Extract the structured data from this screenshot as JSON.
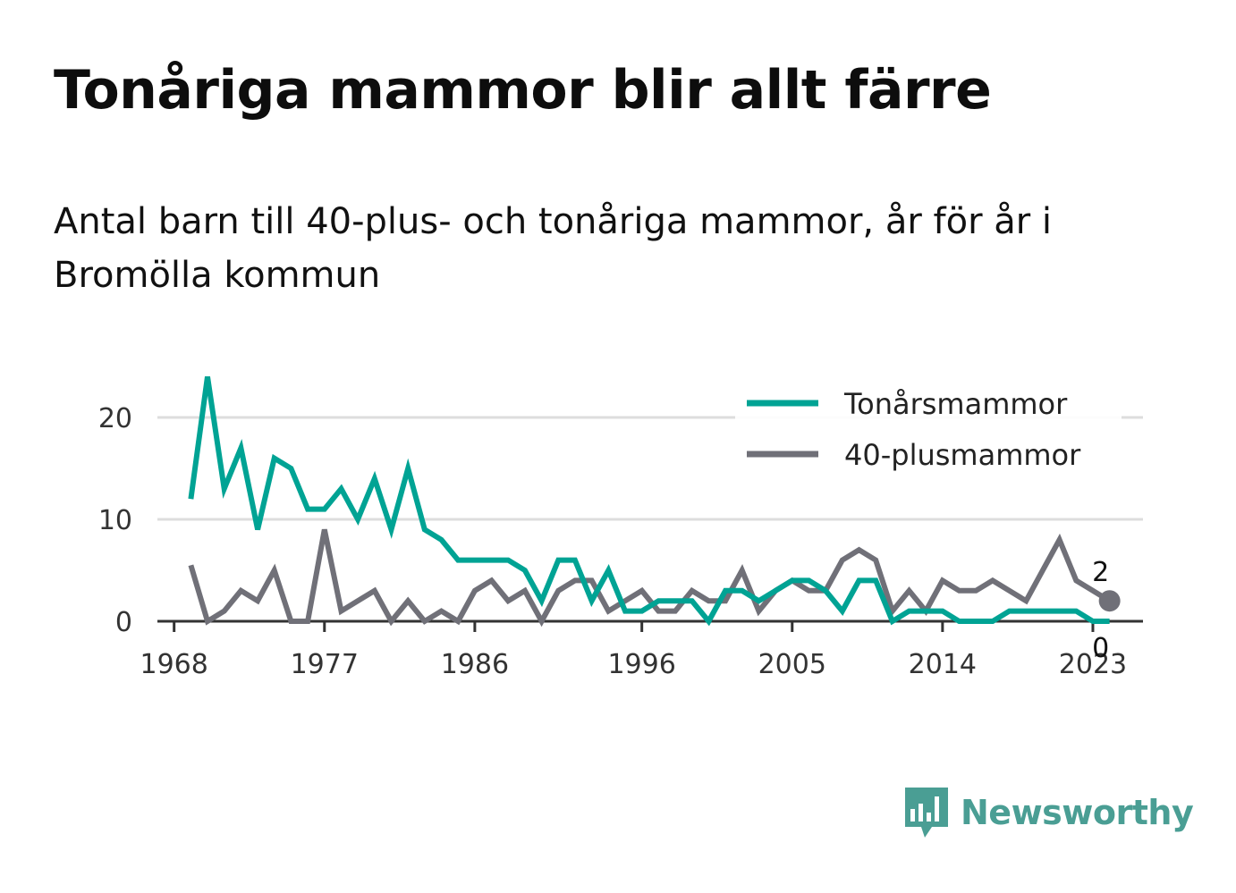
{
  "title": "Tonåriga mammor blir allt färre",
  "subtitle": "Antal barn till 40-plus- och tonåriga mammor, år för år i Bromölla kommun",
  "logo": {
    "text": "Newsworthy",
    "icon": "bar-chart-speech-bubble-icon"
  },
  "colors": {
    "teen": "#00a394",
    "forty": "#707078",
    "grid": "#dddddd",
    "axis": "#333333",
    "brand": "#4a9e94"
  },
  "chart_data": {
    "type": "line",
    "xlabel": "",
    "ylabel": "",
    "xlim": [
      1967,
      2026
    ],
    "ylim": [
      0,
      25
    ],
    "x_ticks": [
      1968,
      1977,
      1986,
      1996,
      2005,
      2014,
      2023
    ],
    "y_ticks": [
      0,
      10,
      20
    ],
    "grid": "horizontal",
    "legend_position": "top-right",
    "x": [
      1969,
      1970,
      1971,
      1972,
      1973,
      1974,
      1975,
      1976,
      1977,
      1978,
      1979,
      1980,
      1981,
      1982,
      1983,
      1984,
      1985,
      1986,
      1987,
      1988,
      1989,
      1990,
      1991,
      1992,
      1993,
      1994,
      1995,
      1996,
      1997,
      1998,
      1999,
      2000,
      2001,
      2002,
      2003,
      2004,
      2005,
      2006,
      2007,
      2008,
      2009,
      2010,
      2011,
      2012,
      2013,
      2014,
      2015,
      2016,
      2017,
      2018,
      2019,
      2020,
      2021,
      2022,
      2023,
      2024
    ],
    "series": [
      {
        "name": "Tonårsmammor",
        "color": "#00a394",
        "values": [
          12,
          24,
          13,
          17,
          9,
          16,
          15,
          11,
          11,
          13,
          10,
          14,
          9,
          15,
          9,
          8,
          6,
          6,
          6,
          6,
          5,
          2,
          6,
          6,
          2,
          5,
          1,
          1,
          2,
          2,
          2,
          0,
          3,
          3,
          2,
          3,
          4,
          4,
          3,
          1,
          4,
          4,
          0,
          1,
          1,
          1,
          0,
          0,
          0,
          1,
          1,
          1,
          1,
          1,
          0,
          0
        ],
        "end_label": "0"
      },
      {
        "name": "40-plusmammor",
        "color": "#707078",
        "values": [
          5.5,
          0,
          1,
          3,
          2,
          5,
          0,
          0,
          9,
          1,
          2,
          3,
          0,
          2,
          0,
          1,
          0,
          3,
          4,
          2,
          3,
          0,
          3,
          4,
          4,
          1,
          2,
          3,
          1,
          1,
          3,
          2,
          2,
          5,
          1,
          3,
          4,
          3,
          3,
          6,
          7,
          6,
          1,
          3,
          1,
          4,
          3,
          3,
          4,
          3,
          2,
          5,
          8,
          4,
          3,
          2
        ],
        "end_label": "2"
      }
    ]
  }
}
